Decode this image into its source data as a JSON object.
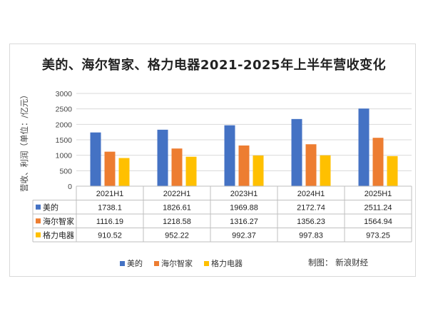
{
  "chart_data": {
    "type": "bar",
    "title": "美的、海尔智家、格力电器2021-2025年上半年营收变化",
    "ylabel": "营收、利润（单位：/亿元）",
    "ylim": [
      0,
      3000
    ],
    "yticks": [
      0,
      500,
      1000,
      1500,
      2000,
      2500,
      3000
    ],
    "categories": [
      "2021H1",
      "2022H1",
      "2023H1",
      "2024H1",
      "2025H1"
    ],
    "series": [
      {
        "name": "美的",
        "color": "#4472c4",
        "values": [
          1738.1,
          1826.61,
          1969.88,
          2172.74,
          2511.24
        ],
        "labels": [
          "1738.1",
          "1826.61",
          "1969.88",
          "2172.74",
          "2511.24"
        ]
      },
      {
        "name": "海尔智家",
        "color": "#ed7d31",
        "values": [
          1116.19,
          1218.58,
          1316.27,
          1356.23,
          1564.94
        ],
        "labels": [
          "1116.19",
          "1218.58",
          "1316.27",
          "1356.23",
          "1564.94"
        ]
      },
      {
        "name": "格力电器",
        "color": "#ffc000",
        "values": [
          910.52,
          952.22,
          992.37,
          997.83,
          973.25
        ],
        "labels": [
          "910.52",
          "952.22",
          "992.37",
          "997.83",
          "973.25"
        ]
      }
    ],
    "grid": true,
    "legend": "bottom",
    "data_table": true
  },
  "source": "制图：  新浪财经"
}
